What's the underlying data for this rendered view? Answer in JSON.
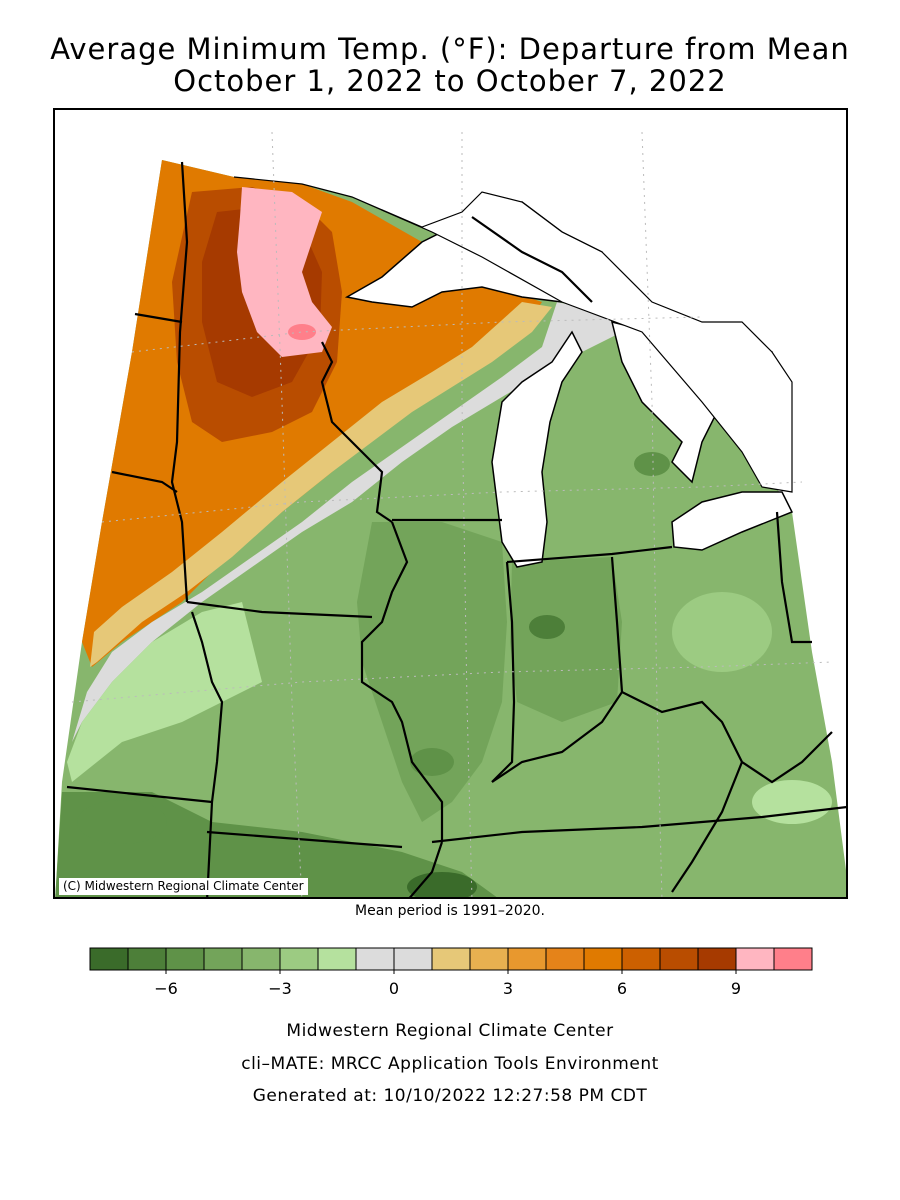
{
  "title": {
    "line1": "Average Minimum Temp. (°F): Departure from Mean",
    "line2": "October 1, 2022 to October 7, 2022"
  },
  "map": {
    "copyright": "(C) Midwestern Regional Climate Center"
  },
  "note": "Mean period is 1991–2020.",
  "legend": {
    "colors": [
      "#3a6b2a",
      "#4d7f39",
      "#5f9248",
      "#73a45a",
      "#87b66d",
      "#9ccb82",
      "#b5e19e",
      "#dcdcdc",
      "#dcdcdc",
      "#e6c878",
      "#e8b050",
      "#e8982e",
      "#e58319",
      "#e07a00",
      "#cc6000",
      "#b94d00",
      "#a63a00",
      "#ffb6c1",
      "#ff7f8a"
    ],
    "tick_labels": [
      "−6",
      "−3",
      "0",
      "3",
      "6",
      "9"
    ]
  },
  "footer": {
    "line1": "Midwestern Regional Climate Center",
    "line2": "cli–MATE: MRCC Application Tools Environment",
    "line3": "Generated at: 10/10/2022 12:27:58 PM CDT"
  }
}
